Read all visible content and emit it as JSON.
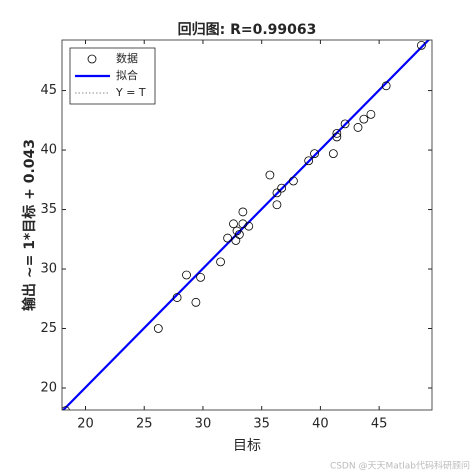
{
  "chart_data": {
    "type": "scatter",
    "title": "回归图: R=0.99063",
    "xlabel": "目标",
    "ylabel": "输出 ~= 1*目标 + 0.043",
    "xlim": [
      18.0,
      49.5
    ],
    "ylim": [
      18.15,
      49.25
    ],
    "xticks": [
      20,
      25,
      30,
      35,
      40,
      45
    ],
    "yticks": [
      20,
      25,
      30,
      35,
      40,
      45
    ],
    "fit": {
      "slope": 1,
      "intercept": 0.043
    },
    "legend_position": "upper-left",
    "legend": [
      "数据",
      "拟合",
      "Y = T"
    ],
    "marker_color": "#000000",
    "fit_color": "#0000ff",
    "identity_color": "#8c8c8c",
    "series": [
      {
        "name": "数据",
        "x": [
          18.3,
          26.2,
          28.6,
          27.8,
          29.4,
          29.8,
          31.5,
          32.1,
          32.6,
          32.8,
          32.9,
          33.1,
          33.4,
          33.4,
          33.9,
          35.7,
          36.3,
          36.3,
          36.7,
          37.7,
          39.0,
          39.5,
          41.1,
          41.4,
          41.4,
          42.1,
          43.2,
          43.7,
          44.3,
          45.6,
          48.6
        ],
        "values": [
          18.1,
          25.0,
          29.5,
          27.6,
          27.2,
          29.3,
          30.6,
          32.6,
          33.8,
          32.4,
          33.2,
          32.9,
          33.8,
          34.8,
          33.6,
          37.9,
          35.4,
          36.4,
          36.8,
          37.4,
          39.1,
          39.7,
          39.7,
          41.1,
          41.4,
          42.2,
          41.9,
          42.6,
          43.0,
          45.4,
          48.8
        ]
      }
    ],
    "watermark": "CSDN @天天Matlab代码科研顾问"
  }
}
